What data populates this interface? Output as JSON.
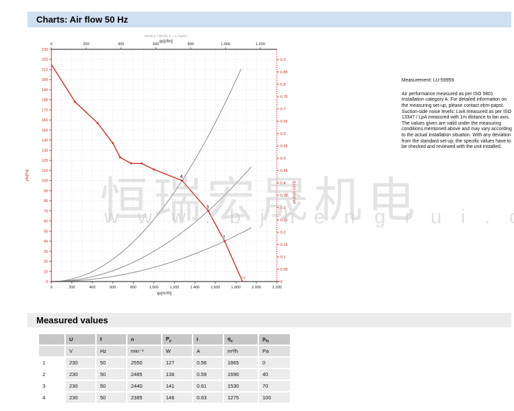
{
  "page": {
    "title": "Charts: Air flow 50 Hz"
  },
  "measurement_note": {
    "title": "Measurement: LU-59959",
    "body": "Air performance measured as per ISO 5801 Installation category A. For detailed information on the measuring set-up, please contact ebm-papst. Suction-side noise levels: LwA measured as per ISO 13347 / LpA measured with 1m distance to fan axis. The values given are valid under the measuring conditions mentioned above and may vary according to the actual installation situation. With any deviation from the standard set-up, the specific values have to be checked and reviewed with the unit installed."
  },
  "watermark": {
    "line1": "恒瑞宏晟机电",
    "line2": "w w w . b j h e n g r u i . c n"
  },
  "chart_data": {
    "type": "line",
    "title_note": "Dichte ρ / density ρ = 1.2 kg/m³",
    "colors": {
      "curve_red": "#d9291f",
      "axis_red": "#cc2a20",
      "system_gray": "#8a8a8a",
      "frame": "#444444",
      "grid": "#c3c9d0"
    },
    "axes": {
      "bottom": {
        "label": "qv[m³/h]",
        "min": 0,
        "max": 2200,
        "tick_step": 200,
        "grid_step": 100,
        "tick_labels": [
          "0",
          "200",
          "400",
          "600",
          "800",
          "1.000",
          "1.200",
          "1.400",
          "1.600",
          "1.800",
          "2.000",
          "2.200"
        ]
      },
      "top": {
        "label": "qv[cfm]",
        "min": 0,
        "max": 1200,
        "tick_step": 200,
        "cfm_to_m3h": 1.699,
        "tick_labels": [
          "0",
          "200",
          "400",
          "600",
          "800",
          "1.000",
          "1.200"
        ]
      },
      "left": {
        "label": "pfs[Pa]",
        "min": 0,
        "max": 230,
        "tick_step": 10
      },
      "right": {
        "label": "pfs[inch H2O]",
        "min": 0,
        "max": 0.9,
        "tick_step": 0.05,
        "tick_labels": [
          "0",
          "0.05",
          "0.1",
          "0.15",
          "0.2",
          "0.25",
          "0.3",
          "0.35",
          "0.4",
          "0.45",
          "0.5",
          "0.55",
          "0.6",
          "0.65",
          "0.7",
          "0.75",
          "0.8",
          "0.85",
          "0.9"
        ]
      }
    },
    "fan_curve": {
      "points": [
        [
          0,
          215
        ],
        [
          230,
          178
        ],
        [
          450,
          157
        ],
        [
          600,
          137
        ],
        [
          670,
          123
        ],
        [
          780,
          117
        ],
        [
          880,
          117
        ],
        [
          1000,
          111
        ],
        [
          1275,
          100
        ],
        [
          1530,
          70
        ],
        [
          1690,
          40
        ],
        [
          1865,
          0
        ]
      ]
    },
    "system_curves": [
      {
        "label": "4",
        "through_qv": 1275,
        "through_pfs": 100,
        "q_end": 1870
      },
      {
        "label": "3",
        "through_qv": 1530,
        "through_pfs": 70,
        "q_end": 1990
      },
      {
        "label": "2",
        "through_qv": 1690,
        "through_pfs": 40,
        "q_end": 1990
      }
    ],
    "operating_points": [
      {
        "label": "4",
        "qv": 1275,
        "pfs": 100
      },
      {
        "label": "3",
        "qv": 1530,
        "pfs": 70
      },
      {
        "label": "2",
        "qv": 1690,
        "pfs": 40
      },
      {
        "label": "1",
        "qv": 1865,
        "pfs": 0
      }
    ]
  },
  "table": {
    "section_title": "Measured values",
    "columns": [
      {
        "main": "",
        "sub": ""
      },
      {
        "main": "U",
        "sub": ""
      },
      {
        "main": "f",
        "sub": ""
      },
      {
        "main": "n",
        "sub": ""
      },
      {
        "main": "P",
        "sub": "e"
      },
      {
        "main": "I",
        "sub": ""
      },
      {
        "main": "q",
        "sub": "v"
      },
      {
        "main": "p",
        "sub": "fs"
      }
    ],
    "units": [
      "",
      "V",
      "Hz",
      "min⁻¹",
      "W",
      "A",
      "m³/h",
      "Pa"
    ],
    "rows": [
      [
        "1",
        "230",
        "50",
        "2550",
        "127",
        "0.56",
        "1865",
        "0"
      ],
      [
        "2",
        "230",
        "50",
        "2485",
        "136",
        "0.59",
        "1690",
        "40"
      ],
      [
        "3",
        "230",
        "50",
        "2440",
        "141",
        "0.61",
        "1530",
        "70"
      ],
      [
        "4",
        "230",
        "50",
        "2385",
        "146",
        "0.63",
        "1275",
        "100"
      ]
    ]
  }
}
